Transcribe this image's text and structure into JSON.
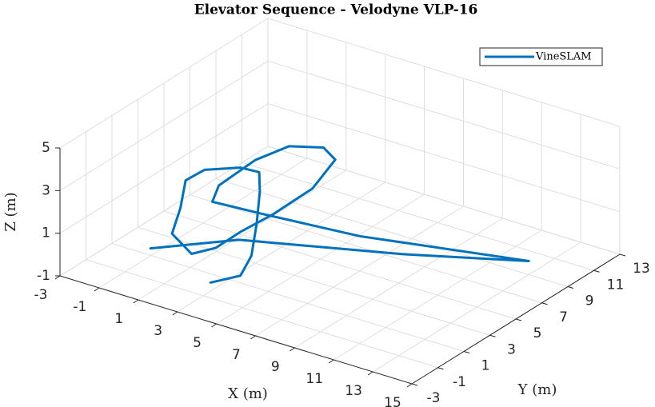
{
  "chart_data": {
    "type": "line3d",
    "title": "Elevator Sequence - Velodyne VLP-16",
    "xlabel": "X (m)",
    "ylabel": "Y (m)",
    "zlabel": "Z (m)",
    "xlim": [
      -3,
      15
    ],
    "ylim": [
      -3,
      13
    ],
    "zlim": [
      -1,
      5
    ],
    "xticks": [
      -3,
      -1,
      1,
      3,
      5,
      7,
      9,
      11,
      13,
      15
    ],
    "yticks": [
      -3,
      -1,
      1,
      3,
      5,
      7,
      9,
      11,
      13
    ],
    "zticks": [
      -1,
      1,
      3,
      5
    ],
    "grid": true,
    "legend": "northeast",
    "series": [
      {
        "name": "VineSLAM",
        "color": "#0072bd",
        "x": [
          3.7,
          4.7,
          4.8,
          4.4,
          3.9,
          3.4,
          2.5,
          1.4,
          1.1,
          1.5,
          1.8,
          3.0,
          3.5,
          3.7,
          4.2,
          4.6,
          4.5,
          3.9,
          3.0,
          2.6,
          2.4,
          2.6,
          4.7,
          8.6,
          14.6,
          10.1,
          3.5,
          0.7
        ],
        "y": [
          -1.5,
          -0.7,
          0.0,
          1.0,
          2.0,
          2.7,
          2.6,
          1.5,
          0.5,
          -0.5,
          -1.6,
          -1.9,
          -0.8,
          0.8,
          2.5,
          5.0,
          6.9,
          6.9,
          5.6,
          3.6,
          1.1,
          0.3,
          1.1,
          2.6,
          6.6,
          3.6,
          1.0,
          -1.6
        ],
        "z": [
          0,
          0.3,
          1,
          2,
          3,
          3.5,
          3.5,
          3.5,
          3.3,
          2.5,
          1.8,
          1.3,
          1.3,
          1.5,
          1.8,
          2.2,
          2.8,
          3.2,
          3.5,
          3.5,
          3.2,
          2.8,
          2.5,
          2,
          1,
          1.2,
          1,
          0.8
        ]
      }
    ]
  }
}
